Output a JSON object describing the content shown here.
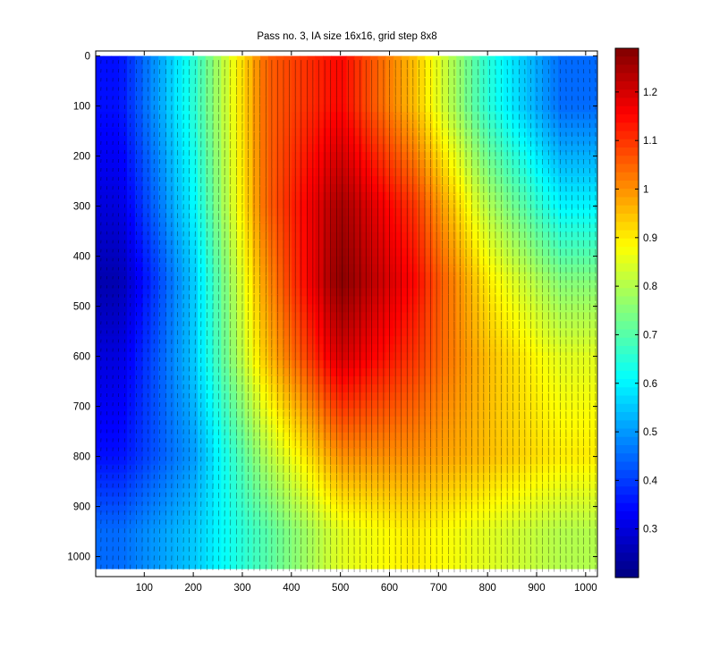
{
  "chart_data": [
    {
      "type": "heatmap",
      "title": "Pass no. 3, IA size 16x16, grid step 8x8",
      "xlabel": "",
      "ylabel": "",
      "xlim": [
        1,
        1024
      ],
      "ylim": [
        -10,
        1040
      ],
      "y_reversed": true,
      "overlay": "velocity vector field (quiver), grid step 8x8",
      "x_ticks": [
        100,
        200,
        300,
        400,
        500,
        600,
        700,
        800,
        900,
        1000
      ],
      "x_tick_labels": [
        "100",
        "200",
        "300",
        "400",
        "500",
        "600",
        "700",
        "800",
        "900",
        "1000"
      ],
      "y_ticks": [
        0,
        100,
        200,
        300,
        400,
        500,
        600,
        700,
        800,
        900,
        1000
      ],
      "y_tick_labels": [
        "0",
        "100",
        "200",
        "300",
        "400",
        "500",
        "600",
        "700",
        "800",
        "900",
        "1000"
      ],
      "colormap": "jet",
      "grid": false,
      "value_field_samples": {
        "description": "approximate velocity magnitude read at grid points",
        "x": [
          50,
          200,
          350,
          500,
          650,
          800,
          950
        ],
        "y": [
          100,
          300,
          450,
          600,
          800,
          950
        ],
        "values": [
          [
            0.35,
            0.65,
            1.05,
            1.15,
            0.95,
            0.65,
            0.45
          ],
          [
            0.3,
            0.6,
            1.05,
            1.25,
            1.1,
            0.8,
            0.6
          ],
          [
            0.25,
            0.55,
            1.0,
            1.28,
            1.15,
            0.9,
            0.75
          ],
          [
            0.3,
            0.55,
            0.95,
            1.2,
            1.1,
            0.95,
            0.85
          ],
          [
            0.35,
            0.5,
            0.8,
            1.0,
            1.0,
            0.95,
            0.9
          ],
          [
            0.45,
            0.55,
            0.7,
            0.85,
            0.9,
            0.85,
            0.8
          ]
        ]
      }
    },
    {
      "type": "colorbar",
      "colormap": "jet",
      "clim": [
        0.2,
        1.29
      ],
      "ticks": [
        0.3,
        0.4,
        0.5,
        0.6,
        0.7,
        0.8,
        0.9,
        1.0,
        1.1,
        1.2
      ],
      "tick_labels": [
        "0.3",
        "0.4",
        "0.5",
        "0.6",
        "0.7",
        "0.8",
        "0.9",
        "1",
        "1.1",
        "1.2"
      ]
    }
  ]
}
